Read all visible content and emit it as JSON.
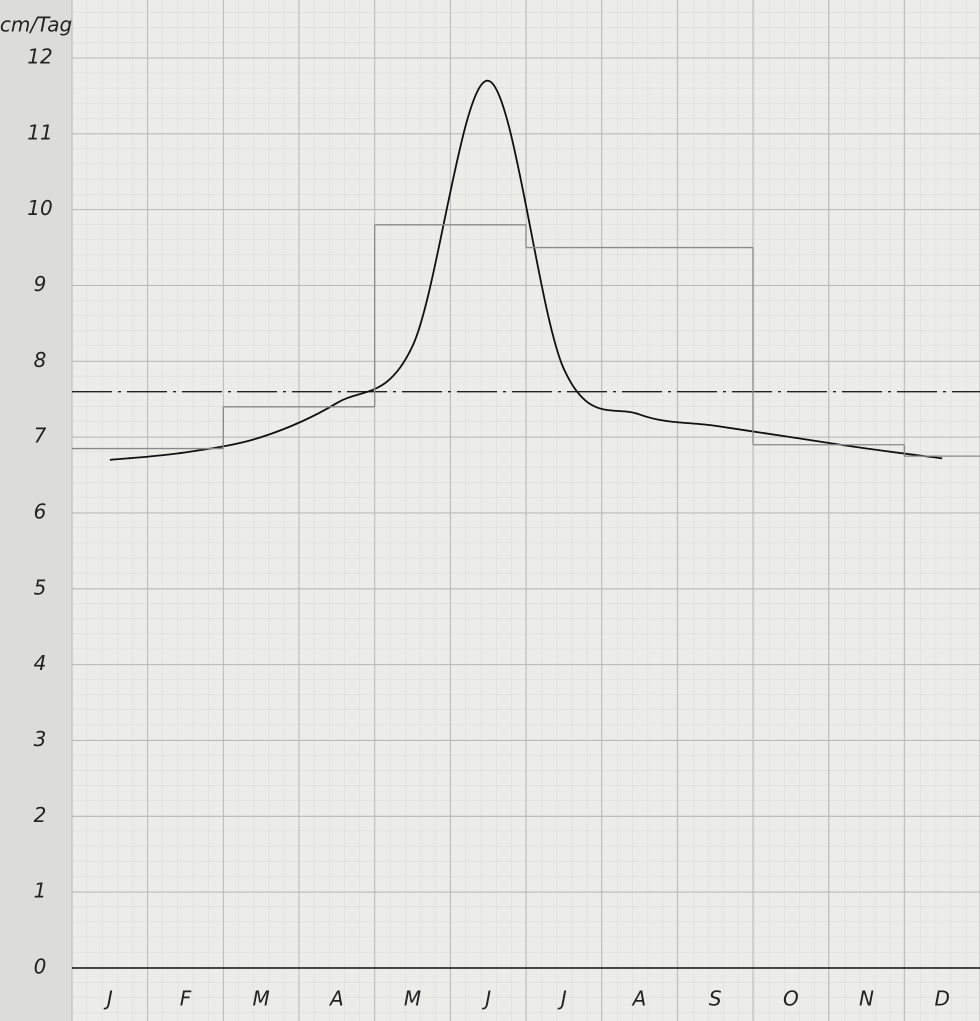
{
  "chart_data": {
    "type": "line",
    "y_label": "cm/Tag",
    "categories": [
      "J",
      "F",
      "M",
      "A",
      "M",
      "J",
      "J",
      "A",
      "S",
      "O",
      "N",
      "D"
    ],
    "series": [
      {
        "color": "#111111",
        "values": [
          6.7,
          6.8,
          7.0,
          7.45,
          8.2,
          11.7,
          7.9,
          7.3,
          7.15,
          7.0,
          6.85,
          6.72
        ]
      },
      {
        "color": "#8a8a8a",
        "style": "step",
        "values": [
          6.85,
          6.85,
          7.4,
          7.4,
          9.8,
          9.8,
          9.5,
          9.5,
          9.5,
          6.9,
          6.9,
          6.75
        ]
      }
    ],
    "mean": 7.6,
    "ylim": [
      0,
      12
    ],
    "yticks": [
      0,
      1,
      2,
      3,
      4,
      5,
      6,
      7,
      8,
      9,
      10,
      11,
      12
    ],
    "grid": true
  }
}
